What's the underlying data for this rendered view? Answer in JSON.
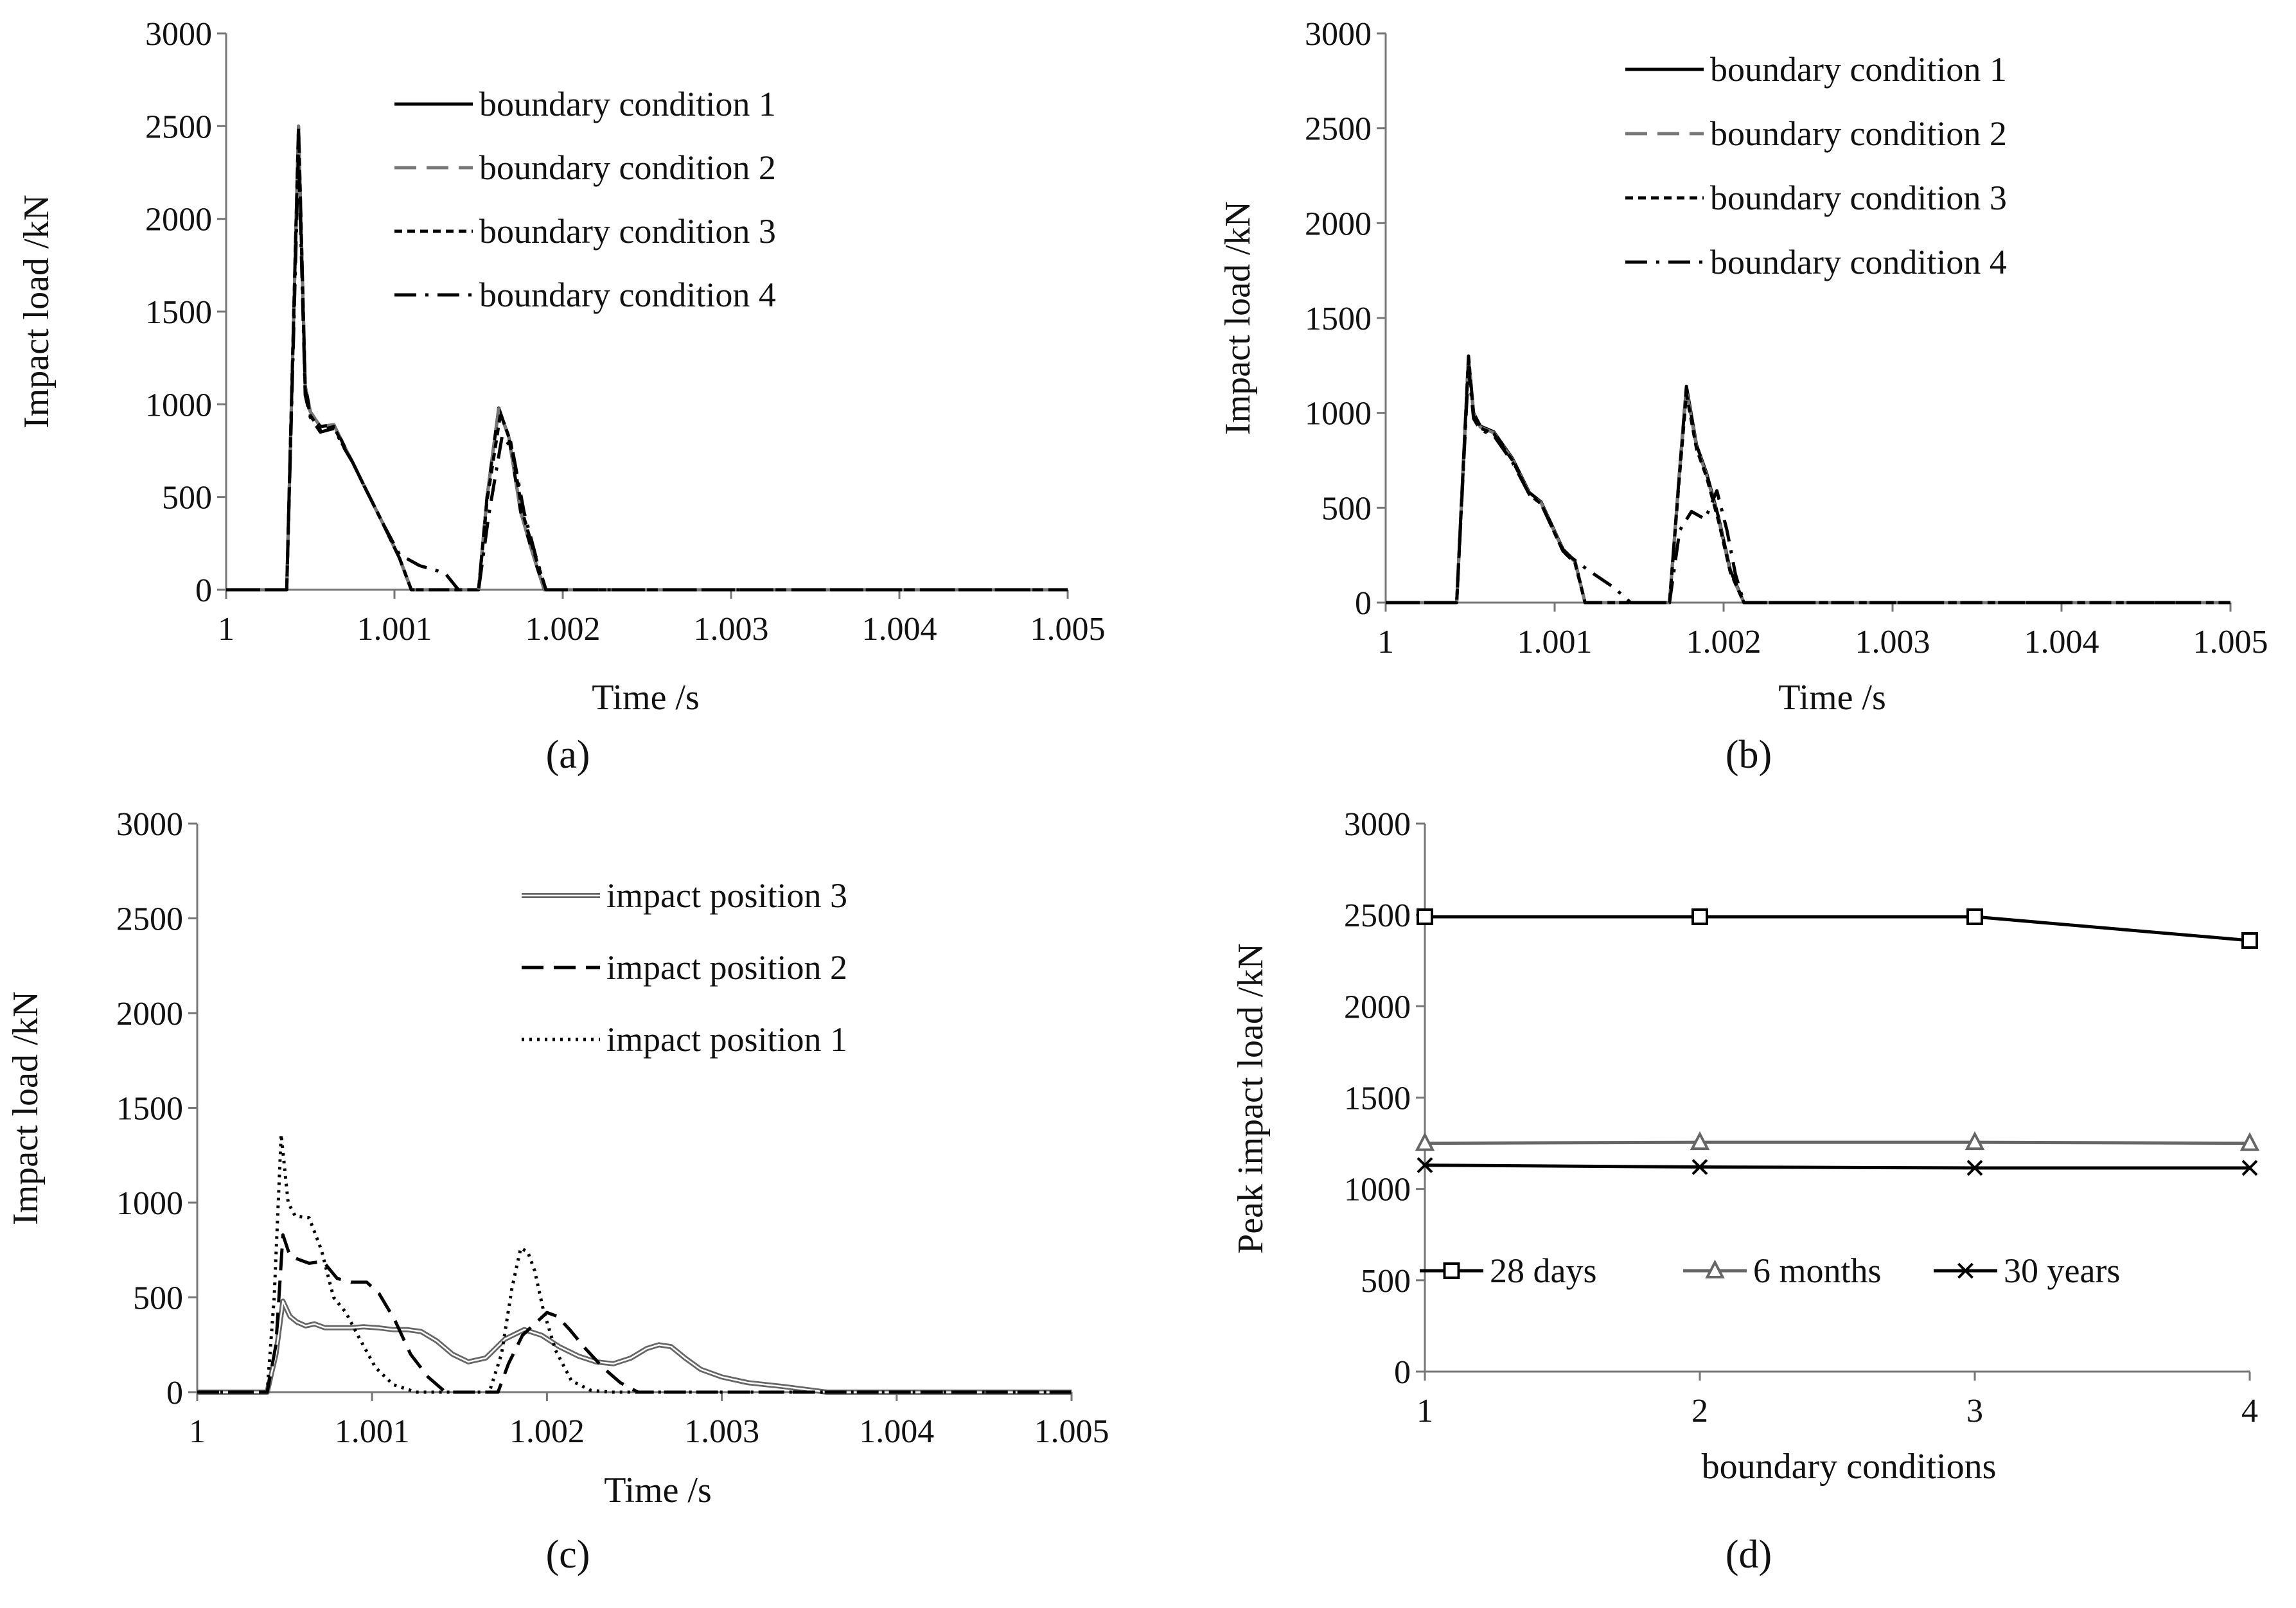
{
  "chart_data": [
    {
      "type": "line",
      "panel_label": "(a)",
      "xlabel": "Time /s",
      "ylabel": "Impact load /kN",
      "xlim": [
        1,
        1.005
      ],
      "ylim": [
        0,
        3000
      ],
      "xticks": [
        "1",
        "1.001",
        "1.002",
        "1.003",
        "1.004",
        "1.005"
      ],
      "yticks": [
        "0",
        "500",
        "1000",
        "1500",
        "2000",
        "2500",
        "3000"
      ],
      "legend_position": "top-right",
      "series": [
        {
          "name": "boundary condition 1",
          "style": "solid",
          "color": "#000000",
          "x": [
            1.0,
            1.00036,
            1.00043,
            1.00047,
            1.0005,
            1.00056,
            1.00064,
            1.00071,
            1.00075,
            1.00082,
            1.00093,
            1.00103,
            1.0011,
            1.0015,
            1.00155,
            1.00162,
            1.00168,
            1.00175,
            1.00182,
            1.00189,
            1.005
          ],
          "y": [
            0,
            0,
            2500,
            1100,
            960,
            880,
            890,
            760,
            690,
            560,
            360,
            170,
            0,
            0,
            500,
            980,
            820,
            420,
            200,
            0,
            0
          ]
        },
        {
          "name": "boundary condition 2",
          "style": "long-dash",
          "color": "#777777",
          "x": [
            1.0,
            1.00036,
            1.00043,
            1.00047,
            1.0005,
            1.00056,
            1.00064,
            1.00071,
            1.00075,
            1.00082,
            1.00093,
            1.00103,
            1.0011,
            1.0015,
            1.00155,
            1.00162,
            1.00168,
            1.00175,
            1.00182,
            1.00189,
            1.005
          ],
          "y": [
            0,
            0,
            2500,
            1100,
            960,
            880,
            890,
            760,
            690,
            560,
            360,
            170,
            0,
            0,
            500,
            975,
            820,
            420,
            200,
            0,
            0
          ]
        },
        {
          "name": "boundary condition 3",
          "style": "short-dash",
          "color": "#000000",
          "x": [
            1.0,
            1.00036,
            1.00043,
            1.00047,
            1.0005,
            1.00056,
            1.00064,
            1.00071,
            1.00075,
            1.00082,
            1.00093,
            1.00103,
            1.0011,
            1.0015,
            1.00155,
            1.00163,
            1.00169,
            1.00176,
            1.00183,
            1.0019,
            1.005
          ],
          "y": [
            0,
            0,
            2490,
            1080,
            940,
            860,
            880,
            750,
            690,
            560,
            360,
            170,
            0,
            0,
            480,
            950,
            800,
            420,
            200,
            0,
            0
          ]
        },
        {
          "name": "boundary condition 4",
          "style": "dash-dot",
          "color": "#000000",
          "x": [
            1.0,
            1.00036,
            1.00043,
            1.00047,
            1.0005,
            1.00056,
            1.00064,
            1.00071,
            1.00075,
            1.00082,
            1.00093,
            1.00103,
            1.00115,
            1.0013,
            1.00138,
            1.0015,
            1.00156,
            1.00164,
            1.0017,
            1.00177,
            1.00184,
            1.0019,
            1.005
          ],
          "y": [
            0,
            0,
            2360,
            1050,
            930,
            850,
            870,
            750,
            690,
            560,
            360,
            190,
            130,
            90,
            0,
            0,
            400,
            830,
            760,
            420,
            180,
            0,
            0
          ]
        }
      ]
    },
    {
      "type": "line",
      "panel_label": "(b)",
      "xlabel": "Time /s",
      "ylabel": "Impact load /kN",
      "xlim": [
        1,
        1.005
      ],
      "ylim": [
        0,
        3000
      ],
      "xticks": [
        "1",
        "1.001",
        "1.002",
        "1.003",
        "1.004",
        "1.005"
      ],
      "yticks": [
        "0",
        "500",
        "1000",
        "1500",
        "2000",
        "2500",
        "3000"
      ],
      "legend_position": "top-right",
      "series": [
        {
          "name": "boundary condition 1",
          "style": "solid",
          "color": "#000000",
          "x": [
            1.0,
            1.00042,
            1.00049,
            1.00052,
            1.00056,
            1.00064,
            1.00075,
            1.00085,
            1.00092,
            1.00105,
            1.00112,
            1.00118,
            1.00168,
            1.00174,
            1.00178,
            1.00184,
            1.0019,
            1.00197,
            1.00204,
            1.00212,
            1.005
          ],
          "y": [
            0,
            0,
            1300,
            1000,
            930,
            900,
            760,
            580,
            530,
            280,
            220,
            0,
            0,
            700,
            1140,
            830,
            680,
            450,
            170,
            0,
            0
          ]
        },
        {
          "name": "boundary condition 2",
          "style": "long-dash",
          "color": "#777777",
          "x": [
            1.0,
            1.00042,
            1.00049,
            1.00052,
            1.00056,
            1.00064,
            1.00075,
            1.00085,
            1.00092,
            1.00105,
            1.00112,
            1.00118,
            1.00168,
            1.00174,
            1.00178,
            1.00184,
            1.0019,
            1.00197,
            1.00204,
            1.00212,
            1.005
          ],
          "y": [
            0,
            0,
            1290,
            995,
            925,
            895,
            755,
            575,
            525,
            275,
            215,
            0,
            0,
            690,
            1120,
            820,
            670,
            440,
            160,
            0,
            0
          ]
        },
        {
          "name": "boundary condition 3",
          "style": "short-dash",
          "color": "#000000",
          "x": [
            1.0,
            1.00042,
            1.00049,
            1.00052,
            1.00056,
            1.00064,
            1.00075,
            1.00085,
            1.00092,
            1.00105,
            1.00112,
            1.00118,
            1.00168,
            1.00174,
            1.00178,
            1.00184,
            1.0019,
            1.00197,
            1.00204,
            1.00212,
            1.005
          ],
          "y": [
            0,
            0,
            1280,
            990,
            920,
            890,
            750,
            570,
            520,
            270,
            210,
            0,
            0,
            680,
            1100,
            810,
            660,
            430,
            160,
            0,
            0
          ]
        },
        {
          "name": "boundary condition 4",
          "style": "dash-dot",
          "color": "#000000",
          "x": [
            1.0,
            1.00042,
            1.00049,
            1.00052,
            1.00056,
            1.00064,
            1.00075,
            1.00085,
            1.00092,
            1.00105,
            1.0012,
            1.00135,
            1.00145,
            1.00168,
            1.00174,
            1.00181,
            1.00189,
            1.00196,
            1.00202,
            1.00207,
            1.00212,
            1.005
          ],
          "y": [
            0,
            0,
            1240,
            970,
            910,
            880,
            740,
            570,
            520,
            270,
            170,
            80,
            0,
            0,
            380,
            480,
            440,
            590,
            380,
            150,
            0,
            0
          ]
        }
      ]
    },
    {
      "type": "line",
      "panel_label": "(c)",
      "xlabel": "Time /s",
      "ylabel": "Impact load /kN",
      "xlim": [
        1,
        1.005
      ],
      "ylim": [
        0,
        3000
      ],
      "xticks": [
        "1",
        "1.001",
        "1.002",
        "1.003",
        "1.004",
        "1.005"
      ],
      "yticks": [
        "0",
        "500",
        "1000",
        "1500",
        "2000",
        "2500",
        "3000"
      ],
      "legend_position": "top-right",
      "series": [
        {
          "name": "impact position 3",
          "style": "double",
          "color": "#666666",
          "x": [
            1.0,
            1.0004,
            1.00045,
            1.00049,
            1.00053,
            1.00057,
            1.00062,
            1.00067,
            1.00073,
            1.0008,
            1.00088,
            1.00095,
            1.00103,
            1.00112,
            1.0012,
            1.00128,
            1.00137,
            1.00146,
            1.00155,
            1.00165,
            1.00176,
            1.00187,
            1.00197,
            1.00207,
            1.00218,
            1.00228,
            1.00238,
            1.00248,
            1.00257,
            1.00264,
            1.00271,
            1.00279,
            1.00288,
            1.003,
            1.00315,
            1.00335,
            1.0036,
            1.005
          ],
          "y": [
            0,
            0,
            200,
            480,
            400,
            370,
            350,
            360,
            340,
            340,
            340,
            345,
            340,
            330,
            330,
            320,
            270,
            200,
            160,
            180,
            280,
            330,
            300,
            240,
            190,
            160,
            150,
            180,
            230,
            250,
            240,
            180,
            120,
            80,
            50,
            30,
            0,
            0
          ]
        },
        {
          "name": "impact position 2",
          "style": "long-dash",
          "color": "#000000",
          "x": [
            1.0,
            1.0004,
            1.00045,
            1.00049,
            1.00053,
            1.00058,
            1.00064,
            1.00072,
            1.0008,
            1.00088,
            1.00097,
            1.00104,
            1.00113,
            1.00122,
            1.00132,
            1.00142,
            1.00172,
            1.00178,
            1.00186,
            1.00193,
            1.002,
            1.00206,
            1.00213,
            1.00222,
            1.00232,
            1.00242,
            1.00252,
            1.005
          ],
          "y": [
            0,
            0,
            250,
            830,
            720,
            700,
            680,
            690,
            600,
            580,
            580,
            520,
            380,
            200,
            80,
            0,
            0,
            150,
            300,
            360,
            420,
            400,
            330,
            230,
            130,
            50,
            0,
            0
          ]
        },
        {
          "name": "impact position 1",
          "style": "dotted",
          "color": "#000000",
          "x": [
            1.0,
            1.0004,
            1.00044,
            1.00048,
            1.00052,
            1.00056,
            1.00064,
            1.00071,
            1.00078,
            1.00085,
            1.00093,
            1.00102,
            1.00112,
            1.00125,
            1.00167,
            1.00174,
            1.0018,
            1.00185,
            1.00189,
            1.00193,
            1.00198,
            1.00205,
            1.00214,
            1.00225,
            1.00236,
            1.005
          ],
          "y": [
            0,
            0,
            500,
            1360,
            1000,
            930,
            920,
            750,
            500,
            420,
            280,
            130,
            40,
            0,
            0,
            200,
            550,
            760,
            740,
            640,
            430,
            220,
            60,
            10,
            0,
            0
          ]
        }
      ]
    },
    {
      "type": "line",
      "panel_label": "(d)",
      "xlabel": "boundary  conditions",
      "ylabel": "Peak impact load /kN",
      "categories": [
        "1",
        "2",
        "3",
        "4"
      ],
      "ylim": [
        0,
        3000
      ],
      "yticks": [
        "0",
        "500",
        "1000",
        "1500",
        "2000",
        "2500",
        "3000"
      ],
      "legend_position": "bottom",
      "series": [
        {
          "name": "28 days",
          "marker": "square",
          "color": "#000000",
          "values": [
            2490,
            2490,
            2490,
            2360
          ]
        },
        {
          "name": "6 months",
          "marker": "triangle",
          "color": "#666666",
          "values": [
            1250,
            1255,
            1255,
            1250
          ]
        },
        {
          "name": "30 years",
          "marker": "x",
          "color": "#000000",
          "values": [
            1130,
            1120,
            1115,
            1115
          ]
        }
      ]
    }
  ]
}
